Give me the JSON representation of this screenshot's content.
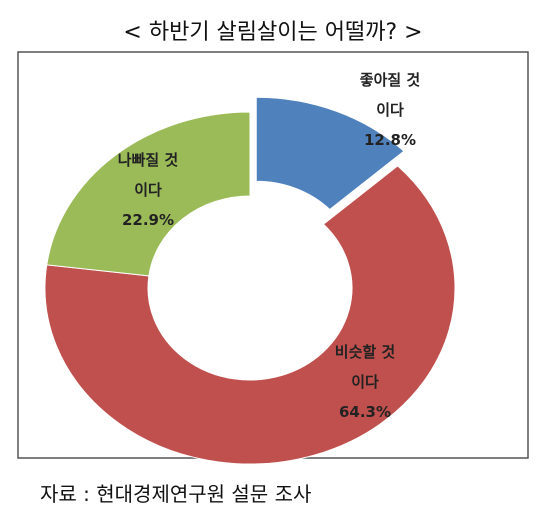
{
  "chart_data": {
    "type": "donut",
    "title": "< 하반기 살림살이는 어떨까? >",
    "categories": [
      "좋아질 것이다",
      "비슷할 것이다",
      "나빠질 것이다"
    ],
    "values": [
      12.8,
      64.3,
      22.9
    ],
    "value_labels": [
      "12.8%",
      "64.3%",
      "22.9%"
    ],
    "colors": [
      "#4f81bd",
      "#c0504d",
      "#9bbb59"
    ],
    "exploded": [
      true,
      false,
      false
    ],
    "source": "자료 : 현대경제연구원 설문 조사"
  }
}
